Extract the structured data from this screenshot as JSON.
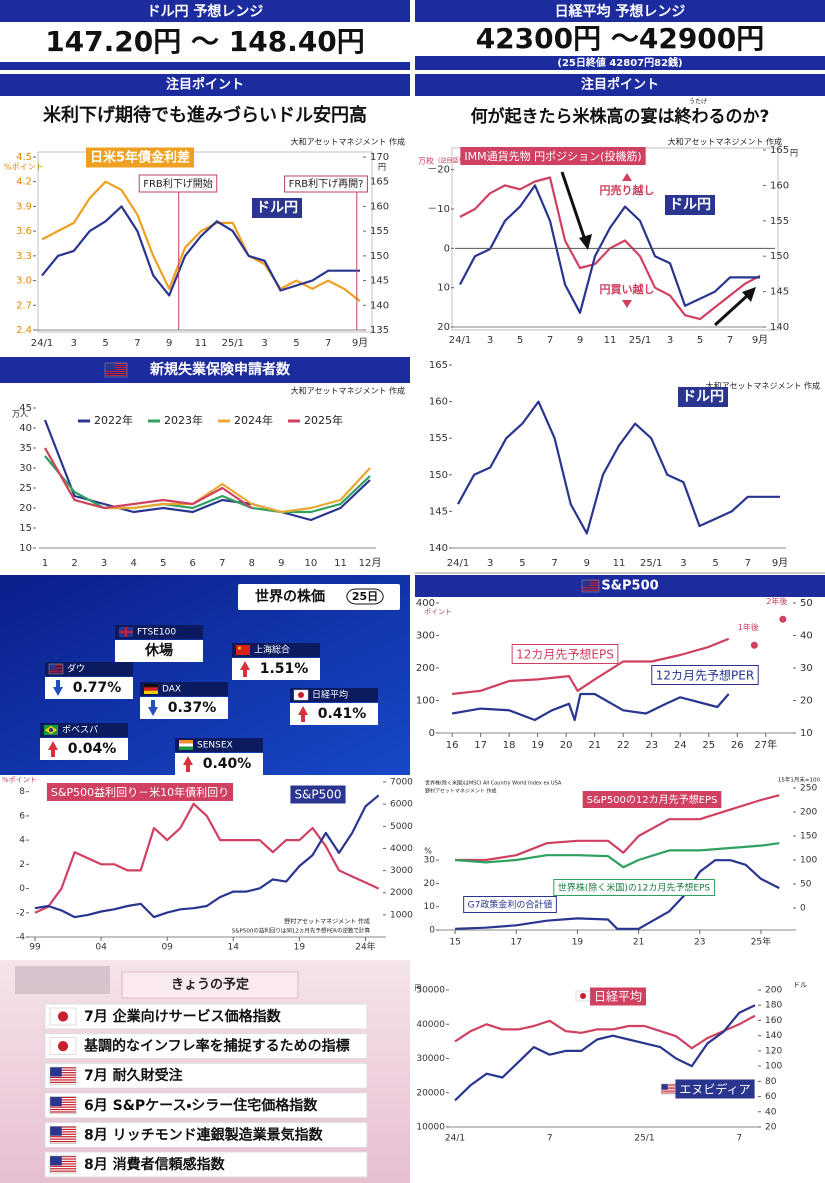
{
  "header_left": {
    "title": "ドル円 予想レンジ",
    "range": "147.20円 ～ 148.40円"
  },
  "header_right": {
    "title": "日経平均 予想レンジ",
    "range": "42300円 ～42900円",
    "note": "(25日終値 42807円82銭)"
  },
  "points": [
    {
      "title": "注目ポイント",
      "text": "米利下げ期待でも進みづらいドル安円高"
    },
    {
      "title": "注目ポイント",
      "text": "何が起きたら米株高の宴は終わるのか?",
      "ruby": "うたげ"
    }
  ],
  "world_stocks": {
    "title": "世界の株価",
    "date": "25日",
    "items": [
      {
        "name": "FTSE100",
        "value": "休場"
      },
      {
        "name": "上海総合",
        "value": "1.51%",
        "direction": "up"
      },
      {
        "name": "ダウ",
        "value": "0.77%",
        "direction": "down"
      },
      {
        "name": "DAX",
        "value": "0.37%",
        "direction": "down"
      },
      {
        "name": "日経平均",
        "value": "0.41%",
        "direction": "up"
      },
      {
        "name": "ボベスパ",
        "value": "0.04%",
        "direction": "up"
      },
      {
        "name": "SENSEX",
        "value": "0.40%",
        "direction": "up"
      }
    ]
  },
  "schedule": {
    "title": "きょうの予定",
    "items": [
      "7月 企業向けサービス価格指数",
      "基調的なインフレ率を捕捉するための指標",
      "7月 耐久財受注",
      "6月 S&Pケース・シラー住宅価格指数",
      "8月 リッチモンド連銀製造業景気指数",
      "8月 消費者信頼感指数"
    ]
  },
  "chart_data": [
    {
      "type": "line",
      "source": "大和アセットマネジメント 作成",
      "y_label": "%ポイント",
      "y2_label": "円",
      "annotations": [
        "FRB利下げ開始",
        "FRB利下げ再開?"
      ],
      "categories": [
        "24/1",
        null,
        "3",
        null,
        "5",
        null,
        "7",
        null,
        "9",
        null,
        "11",
        null,
        "25/1",
        null,
        "3",
        null,
        "5",
        null,
        "7",
        null,
        "9月"
      ],
      "ylim": [
        2.4,
        4.5
      ],
      "yticks": [
        2.4,
        2.7,
        {
          "value": 3,
          "label": "3.0"
        },
        3.3,
        3.6,
        3.9,
        4.2,
        4.5
      ],
      "y2lim": [
        135,
        170
      ],
      "y2ticks": [
        135,
        140,
        145,
        150,
        155,
        160,
        165,
        170
      ],
      "series": [
        {
          "name": "日米5年債金利差",
          "color": "#f0a020",
          "values": [
            3.5,
            3.6,
            3.7,
            4.0,
            4.2,
            4.1,
            3.8,
            3.3,
            2.9,
            3.4,
            3.6,
            3.7,
            3.7,
            3.3,
            3.2,
            2.9,
            3.0,
            2.9,
            3.0,
            2.9,
            2.75
          ]
        },
        {
          "name": "ドル円",
          "color": "#2a3590",
          "axis": "y2",
          "values": [
            146,
            150,
            151,
            155,
            157,
            160,
            155,
            146,
            142,
            150,
            154,
            157,
            155,
            150,
            149,
            143,
            144,
            145,
            147,
            147,
            147
          ]
        }
      ]
    },
    {
      "type": "line",
      "source": "大和アセットマネジメント 作成",
      "y_label": "万枚",
      "y_note": "(逆目盛り)",
      "y2_label": "円",
      "annotations": [
        "円売り越し",
        "円買い越し"
      ],
      "categories": [
        "24/1",
        null,
        "3",
        null,
        "5",
        null,
        "7",
        null,
        "9",
        null,
        "11",
        null,
        "25/1",
        null,
        "3",
        null,
        "5",
        null,
        "7",
        null,
        "9月"
      ],
      "ylim": [
        20,
        -25
      ],
      "yticks": [
        {
          "value": -20,
          "label": "－20"
        },
        {
          "value": -10,
          "label": "－10"
        },
        0,
        10,
        20
      ],
      "y2lim": [
        140,
        165
      ],
      "y2ticks": [
        140,
        145,
        150,
        155,
        160,
        165
      ],
      "series": [
        {
          "name": "IMM通貨先物 円ポジション(投機筋)",
          "color": "#d04060",
          "values": [
            -8,
            -10,
            -14,
            -16,
            -15,
            -17,
            -18,
            -2,
            5,
            4,
            0,
            -2,
            2,
            10,
            12,
            17,
            18,
            15,
            12,
            9,
            7
          ]
        },
        {
          "name": "ドル円",
          "color": "#2a3590",
          "axis": "y2",
          "values": [
            146,
            150,
            151,
            155,
            157,
            160,
            155,
            146,
            142,
            150,
            154,
            157,
            155,
            150,
            149,
            143,
            144,
            145,
            147,
            147,
            147
          ]
        }
      ]
    },
    {
      "type": "line",
      "title": "新規失業保険申請者数",
      "source": "大和アセットマネジメント 作成",
      "y_label": "万人",
      "legend": true,
      "categories": [
        "1",
        "2",
        "3",
        "4",
        "5",
        "6",
        "7",
        "8",
        "9",
        "10",
        "11",
        "12月"
      ],
      "ylim": [
        10,
        45
      ],
      "yticks": [
        10,
        15,
        20,
        25,
        30,
        35,
        40,
        45
      ],
      "series": [
        {
          "name": "2022年",
          "color": "#2a3590",
          "values": [
            42,
            23,
            21,
            19,
            20,
            19,
            22,
            21,
            19,
            17,
            20,
            27
          ]
        },
        {
          "name": "2023年",
          "color": "#2ea060",
          "values": [
            33,
            24,
            20,
            20,
            21,
            20,
            23,
            20,
            19,
            19,
            21,
            28
          ]
        },
        {
          "name": "2024年",
          "color": "#e8a830",
          "values": [
            35,
            22,
            20,
            20,
            21,
            21,
            26,
            21,
            19,
            20,
            22,
            30
          ]
        },
        {
          "name": "2025年",
          "color": "#d04060",
          "values": [
            35,
            22,
            20,
            21,
            22,
            21,
            25,
            20,
            null,
            null,
            null,
            null
          ]
        }
      ]
    },
    {
      "type": "line",
      "source": "大和アセットマネジメント 作成",
      "categories": [
        "24/1",
        null,
        "3",
        null,
        "5",
        null,
        "7",
        null,
        "9",
        null,
        "11",
        null,
        "25/1",
        null,
        "3",
        null,
        "5",
        null,
        "7",
        null,
        "9月"
      ],
      "ylim": [
        140,
        165
      ],
      "yticks": [
        140,
        145,
        150,
        155,
        160,
        165
      ],
      "series": [
        {
          "name": "ドル円",
          "color": "#2a3590",
          "values": [
            146,
            150,
            151,
            155,
            157,
            160,
            155,
            146,
            142,
            150,
            154,
            157,
            155,
            150,
            149,
            143,
            144,
            145,
            147,
            147,
            147
          ]
        }
      ]
    },
    {
      "type": "line",
      "title": "S&P500",
      "y_label": "ポイント",
      "xlim": [
        2015.75,
        2027.85
      ],
      "xticks": [
        {
          "value": 2016,
          "label": "16"
        },
        {
          "value": 2017,
          "label": "17"
        },
        {
          "value": 2018,
          "label": "18"
        },
        {
          "value": 2019,
          "label": "19"
        },
        {
          "value": 2020,
          "label": "20"
        },
        {
          "value": 2021,
          "label": "21"
        },
        {
          "value": 2022,
          "label": "22"
        },
        {
          "value": 2023,
          "label": "23"
        },
        {
          "value": 2024,
          "label": "24"
        },
        {
          "value": 2025,
          "label": "25"
        },
        {
          "value": 2026,
          "label": "26"
        },
        {
          "value": 2027,
          "label": "27年"
        }
      ],
      "ylim": [
        0,
        400
      ],
      "yticks": [
        0,
        100,
        200,
        300,
        400
      ],
      "y2lim": [
        10,
        50
      ],
      "y2ticks": [
        10,
        20,
        30,
        40,
        50
      ],
      "series": [
        {
          "name": "12カ月先予想EPS",
          "color": "#d04060",
          "x": [
            2016,
            2017,
            2018,
            2019,
            2020.1,
            2020.4,
            2021,
            2022,
            2023,
            2024,
            2025,
            2025.7
          ],
          "values": [
            120,
            130,
            160,
            165,
            175,
            130,
            165,
            220,
            220,
            240,
            265,
            290
          ]
        },
        {
          "name": "12カ月先予想PER",
          "color": "#2a3590",
          "axis": "y2",
          "x": [
            2016,
            2017,
            2018,
            2018.9,
            2019.5,
            2020.1,
            2020.3,
            2020.5,
            2021,
            2022,
            2022.8,
            2023.5,
            2024,
            2025.3,
            2025.7
          ],
          "values": [
            16,
            17.5,
            17,
            14,
            17,
            19,
            14,
            22,
            22,
            17,
            16,
            19,
            21,
            18,
            22
          ]
        }
      ],
      "points": [
        {
          "label": "1年後",
          "x": 2026.6,
          "value": 270
        },
        {
          "label": "2年後",
          "x": 2027.6,
          "value": 350
        }
      ]
    },
    {
      "type": "line",
      "source": "野村アセットマネジメント 作成",
      "note": "S&P500の益利回りは同12ヵ月先予想PERの逆数で計算",
      "y_label": "%ポイント",
      "xlim": [
        1999,
        2025.1
      ],
      "xticks": [
        {
          "value": 1999,
          "label": "99"
        },
        {
          "value": 2004,
          "label": "04"
        },
        {
          "value": 2009,
          "label": "09"
        },
        {
          "value": 2014,
          "label": "14"
        },
        {
          "value": 2019,
          "label": "19"
        },
        {
          "value": 2024,
          "label": "24年"
        }
      ],
      "x": [
        1999,
        2000,
        2001,
        2002,
        2003,
        2004,
        2005,
        2006,
        2007,
        2008,
        2009,
        2010,
        2011,
        2012,
        2013,
        2014,
        2015,
        2016,
        2017,
        2018,
        2019,
        2020,
        2021,
        2022,
        2023,
        2024,
        2025
      ],
      "ylim": [
        -4,
        8.8
      ],
      "yticks": [
        -4,
        -2,
        0,
        2,
        4,
        6,
        8
      ],
      "y2lim": [
        0,
        7000
      ],
      "y2ticks": [
        1000,
        2000,
        3000,
        4000,
        5000,
        6000,
        7000
      ],
      "series": [
        {
          "name": "S&P500益利回り－米10年債利回り",
          "color": "#d04060",
          "values": [
            -2,
            -1.5,
            0,
            3,
            2.5,
            2,
            2,
            1.5,
            1.5,
            5,
            4,
            5,
            7,
            6,
            4,
            4,
            4,
            4,
            3,
            4,
            4,
            5,
            3.5,
            1.5,
            1,
            0.5,
            0
          ]
        },
        {
          "name": "S&P500",
          "color": "#2a3590",
          "axis": "y2",
          "values": [
            1300,
            1400,
            1200,
            900,
            1000,
            1150,
            1250,
            1400,
            1500,
            900,
            1100,
            1250,
            1300,
            1400,
            1800,
            2050,
            2050,
            2200,
            2600,
            2500,
            3200,
            3700,
            4700,
            3800,
            4700,
            5900,
            6400
          ]
        }
      ]
    },
    {
      "type": "line",
      "notes": [
        "世界株(除く米国)はMSCI All Country World Index ex USA",
        "野村アセットマネジメント 作成"
      ],
      "y_label": "%",
      "y2_label": "15年1月末=100",
      "xlim": [
        2014.67,
        2025.95
      ],
      "xticks": [
        {
          "value": 2015,
          "label": "15"
        },
        {
          "value": 2017,
          "label": "17"
        },
        {
          "value": 2019,
          "label": "19"
        },
        {
          "value": 2021,
          "label": "21"
        },
        {
          "value": 2023,
          "label": "23"
        },
        {
          "value": 2025,
          "label": "25年"
        }
      ],
      "ylim": [
        0,
        61
      ],
      "yticks": [
        0,
        10,
        20,
        30
      ],
      "y2lim": [
        -46,
        250
      ],
      "y2ticks": [
        0,
        50,
        100,
        150,
        200,
        250
      ],
      "series": [
        {
          "name": "S&P500の12カ月先予想EPS",
          "color": "#d04060",
          "axis": "y2",
          "x": [
            2015,
            2016,
            2017,
            2018,
            2019,
            2020,
            2020.5,
            2021,
            2022,
            2023,
            2024,
            2025,
            2025.6
          ],
          "values": [
            100,
            100,
            110,
            135,
            140,
            140,
            115,
            150,
            185,
            185,
            205,
            225,
            235
          ]
        },
        {
          "name": "世界株(除く米国)の12カ月先予想EPS",
          "color": "#2ea060",
          "axis": "y2",
          "x": [
            2015,
            2016,
            2017,
            2018,
            2019,
            2020,
            2020.5,
            2021,
            2022,
            2023,
            2024,
            2025,
            2025.6
          ],
          "values": [
            100,
            95,
            100,
            110,
            110,
            108,
            85,
            100,
            120,
            120,
            125,
            130,
            135
          ]
        },
        {
          "name": "G7政策金利の合計値",
          "color": "#2a3590",
          "x": [
            2015,
            2016,
            2017,
            2018,
            2019,
            2020,
            2020.3,
            2021,
            2022,
            2022.5,
            2023,
            2023.5,
            2024,
            2024.5,
            2025,
            2025.6
          ],
          "values": [
            0.5,
            1,
            2,
            4,
            5,
            4.5,
            0.5,
            0.5,
            8,
            15,
            25,
            30,
            30,
            28,
            22,
            18
          ]
        }
      ]
    },
    {
      "type": "line",
      "y_label": "円",
      "y2_label": "ドル",
      "categories": [
        "24/1",
        null,
        null,
        null,
        null,
        null,
        "7",
        null,
        null,
        null,
        null,
        null,
        "25/1",
        null,
        null,
        null,
        null,
        null,
        "7",
        null
      ],
      "ylim": [
        10000,
        50000
      ],
      "yticks": [
        10000,
        20000,
        30000,
        40000,
        50000
      ],
      "y2lim": [
        20,
        200
      ],
      "y2ticks": [
        20,
        40,
        60,
        80,
        100,
        120,
        140,
        160,
        180,
        200
      ],
      "series": [
        {
          "name": "日経平均",
          "color": "#d04060",
          "values": [
            35000,
            38000,
            40000,
            38500,
            38500,
            39500,
            41000,
            38000,
            37500,
            38500,
            38500,
            39500,
            39500,
            38000,
            36500,
            33000,
            36000,
            38000,
            40000,
            42500
          ]
        },
        {
          "name": "エヌビディア",
          "color": "#2a3590",
          "axis": "y2",
          "values": [
            55,
            75,
            90,
            85,
            105,
            125,
            115,
            120,
            120,
            135,
            140,
            135,
            130,
            125,
            110,
            100,
            130,
            145,
            170,
            180
          ]
        }
      ]
    }
  ]
}
